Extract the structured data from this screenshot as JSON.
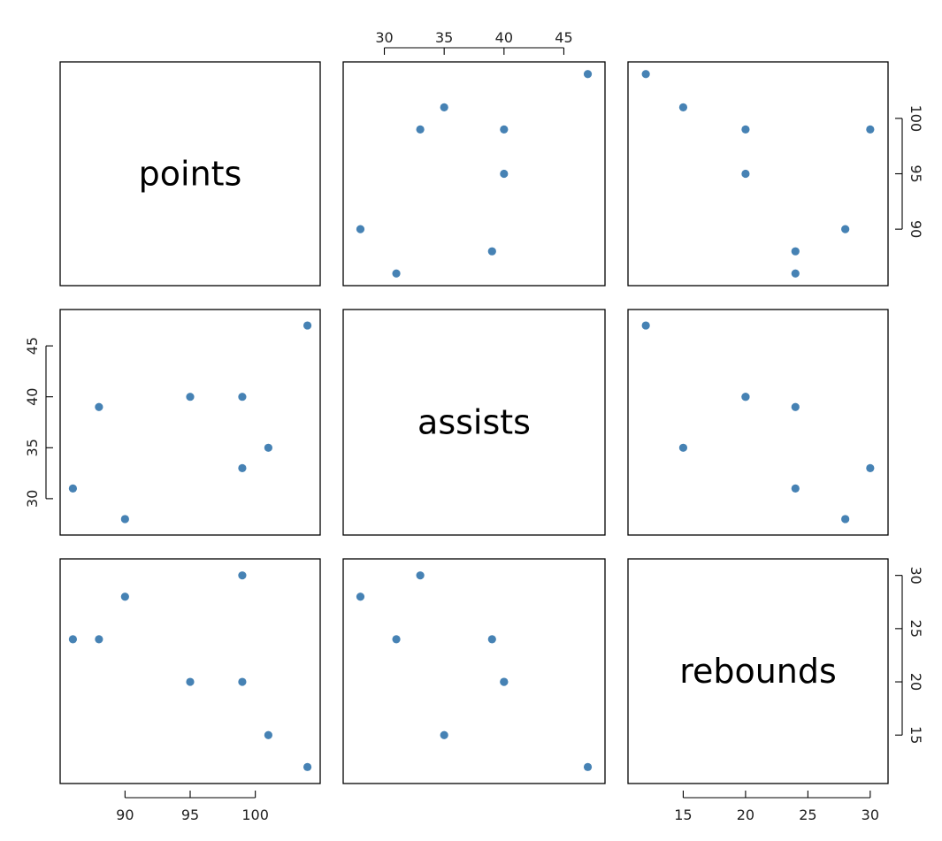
{
  "chart_data": {
    "type": "scatter",
    "subtype": "pairs-matrix",
    "point_color": "#4682B4",
    "variables": [
      {
        "name": "points",
        "lim": [
          85.7,
          104.3
        ],
        "ticks": [
          90,
          95,
          100
        ]
      },
      {
        "name": "assists",
        "lim": [
          27.3,
          47.7
        ],
        "ticks": [
          30,
          35,
          40,
          45
        ]
      },
      {
        "name": "rebounds",
        "lim": [
          11.28,
          30.72
        ],
        "ticks": [
          15,
          20,
          25,
          30
        ]
      }
    ],
    "observations": [
      {
        "points": 104,
        "assists": 47,
        "rebounds": 12
      },
      {
        "points": 101,
        "assists": 35,
        "rebounds": 15
      },
      {
        "points": 99,
        "assists": 33,
        "rebounds": 30
      },
      {
        "points": 99,
        "assists": 40,
        "rebounds": 20
      },
      {
        "points": 95,
        "assists": 40,
        "rebounds": 20
      },
      {
        "points": 90,
        "assists": 28,
        "rebounds": 28
      },
      {
        "points": 88,
        "assists": 39,
        "rebounds": 24
      },
      {
        "points": 86,
        "assists": 31,
        "rebounds": 24
      }
    ],
    "axes": {
      "top": {
        "columns": [
          1
        ]
      },
      "bottom": {
        "columns": [
          0,
          2
        ]
      },
      "left": {
        "rows": [
          1
        ]
      },
      "right": {
        "rows": [
          0,
          2
        ]
      }
    }
  }
}
